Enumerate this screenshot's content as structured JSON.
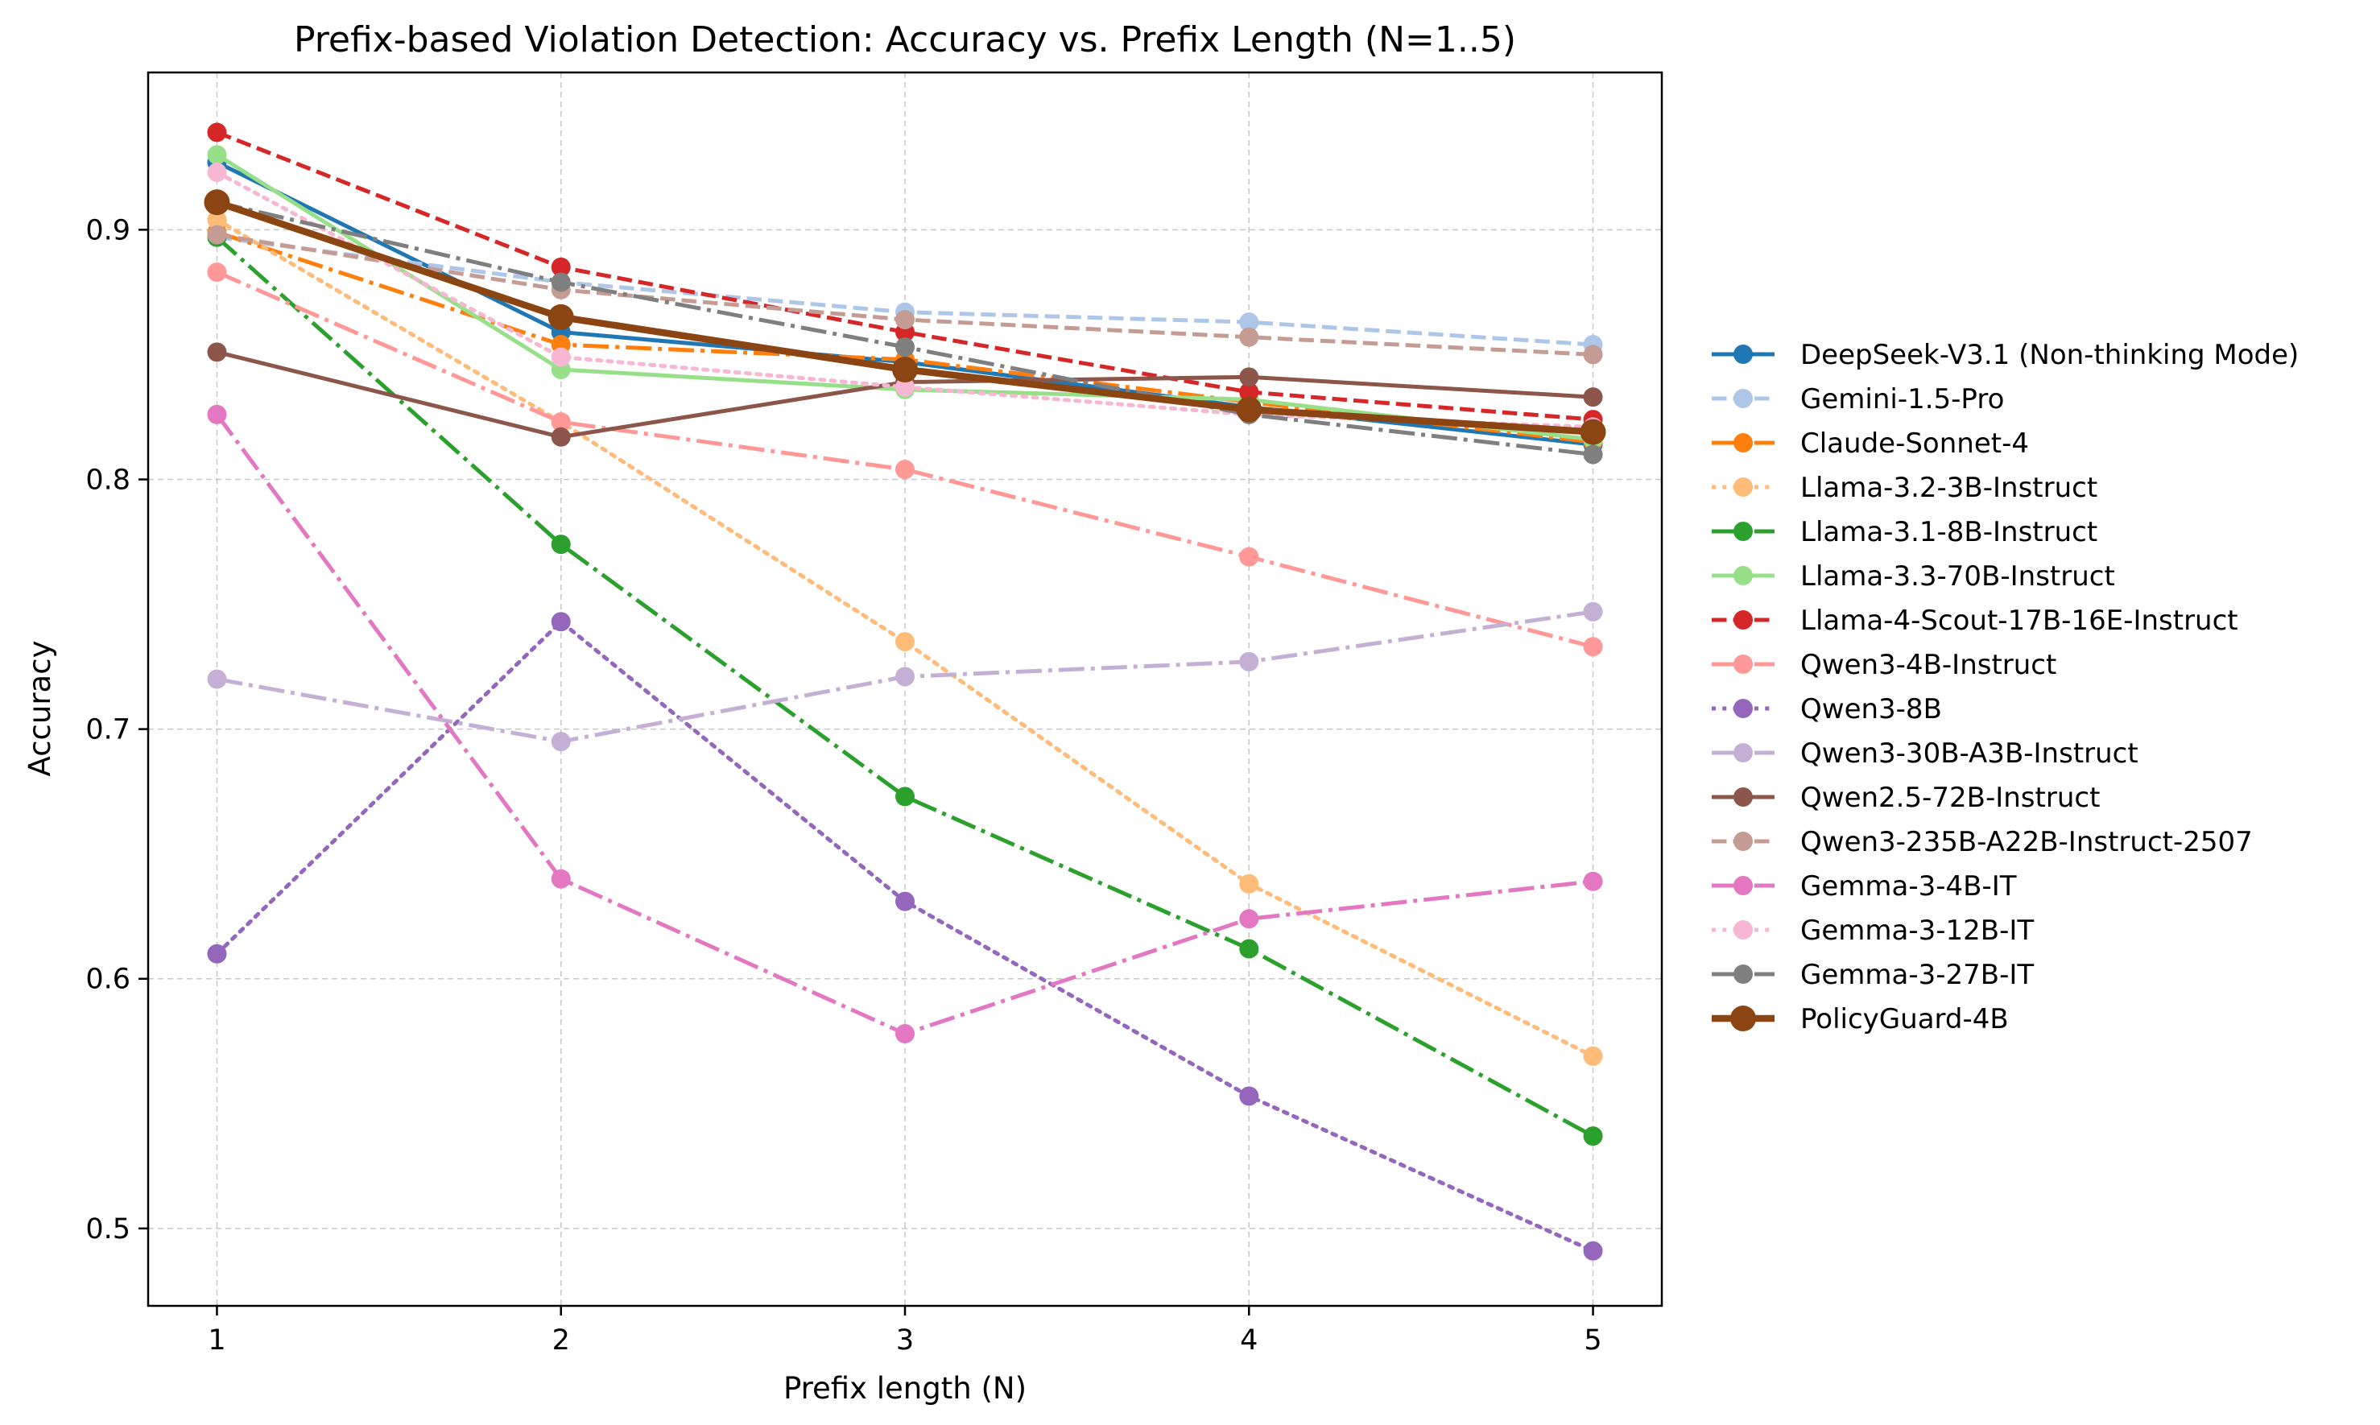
{
  "chart_data": {
    "type": "line",
    "title": "Prefix-based Violation Detection: Accuracy vs. Prefix Length (N=1..5)",
    "xlabel": "Prefix length (N)",
    "ylabel": "Accuracy",
    "x": [
      1,
      2,
      3,
      4,
      5
    ],
    "xlim": [
      0.8,
      5.2
    ],
    "ylim": [
      0.469,
      0.963
    ],
    "x_ticks": [
      "1",
      "2",
      "3",
      "4",
      "5"
    ],
    "y_ticks": [
      0.5,
      0.6,
      0.7,
      0.8,
      0.9
    ],
    "y_tick_labels": [
      "0.5",
      "0.6",
      "0.7",
      "0.8",
      "0.9"
    ],
    "grid": true,
    "legend_position": "right, outside plot",
    "series": [
      {
        "name": "DeepSeek-V3.1 (Non-thinking Mode)",
        "values": [
          0.927,
          0.859,
          0.847,
          0.829,
          0.814
        ],
        "color": "#1f77b4",
        "style": "solid"
      },
      {
        "name": "Gemini-1.5-Pro",
        "values": [
          0.897,
          0.879,
          0.867,
          0.863,
          0.854
        ],
        "color": "#aec7e8",
        "style": "dashed"
      },
      {
        "name": "Claude-Sonnet-4",
        "values": [
          0.899,
          0.854,
          0.848,
          0.831,
          0.815
        ],
        "color": "#ff7f0e",
        "style": "dashdot"
      },
      {
        "name": "Llama-3.2-3B-Instruct",
        "values": [
          0.904,
          0.823,
          0.735,
          0.638,
          0.569
        ],
        "color": "#ffbb78",
        "style": "dotted"
      },
      {
        "name": "Llama-3.1-8B-Instruct",
        "values": [
          0.897,
          0.774,
          0.673,
          0.612,
          0.537
        ],
        "color": "#2ca02c",
        "style": "dashdot"
      },
      {
        "name": "Llama-3.3-70B-Instruct",
        "values": [
          0.93,
          0.844,
          0.836,
          0.832,
          0.816
        ],
        "color": "#98df8a",
        "style": "solid"
      },
      {
        "name": "Llama-4-Scout-17B-16E-Instruct",
        "values": [
          0.939,
          0.885,
          0.859,
          0.835,
          0.824
        ],
        "color": "#d62728",
        "style": "dashed"
      },
      {
        "name": "Qwen3-4B-Instruct",
        "values": [
          0.883,
          0.823,
          0.804,
          0.769,
          0.733
        ],
        "color": "#ff9896",
        "style": "dashdot"
      },
      {
        "name": "Qwen3-8B",
        "values": [
          0.61,
          0.743,
          0.631,
          0.553,
          0.491
        ],
        "color": "#9467bd",
        "style": "dotted"
      },
      {
        "name": "Qwen3-30B-A3B-Instruct",
        "values": [
          0.72,
          0.695,
          0.721,
          0.727,
          0.747
        ],
        "color": "#c5b0d5",
        "style": "dashdot"
      },
      {
        "name": "Qwen2.5-72B-Instruct",
        "values": [
          0.851,
          0.817,
          0.839,
          0.841,
          0.833
        ],
        "color": "#8c564b",
        "style": "solid"
      },
      {
        "name": "Qwen3-235B-A22B-Instruct-2507",
        "values": [
          0.898,
          0.876,
          0.864,
          0.857,
          0.85
        ],
        "color": "#c49c94",
        "style": "dashed"
      },
      {
        "name": "Gemma-3-4B-IT",
        "values": [
          0.826,
          0.64,
          0.578,
          0.624,
          0.639
        ],
        "color": "#e377c2",
        "style": "dashdot"
      },
      {
        "name": "Gemma-3-12B-IT",
        "values": [
          0.923,
          0.849,
          0.837,
          0.826,
          0.821
        ],
        "color": "#f7b6d2",
        "style": "dotted"
      },
      {
        "name": "Gemma-3-27B-IT",
        "values": [
          0.911,
          0.879,
          0.853,
          0.826,
          0.81
        ],
        "color": "#7f7f7f",
        "style": "dashdot"
      },
      {
        "name": "PolicyGuard-4B",
        "values": [
          0.911,
          0.865,
          0.844,
          0.828,
          0.819
        ],
        "color": "#8b4513",
        "style": "solid",
        "emphasis": true
      }
    ]
  }
}
